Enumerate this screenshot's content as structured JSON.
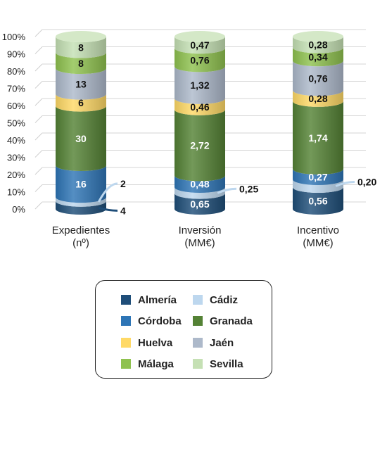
{
  "chart_data": {
    "type": "bar",
    "stacked": true,
    "percent_stacked": true,
    "categories": [
      "Expedientes\n(nº)",
      "Inversión\n(MM€)",
      "Incentivo\n(MM€)"
    ],
    "y_ticks": [
      "0%",
      "10%",
      "20%",
      "30%",
      "40%",
      "50%",
      "60%",
      "70%",
      "80%",
      "90%",
      "100%"
    ],
    "ylim": [
      0,
      100
    ],
    "grid": true,
    "legend_placement": "bottom",
    "series": [
      {
        "name": "Almería",
        "color": "#1f4e79",
        "values": [
          4,
          0.65,
          0.56
        ],
        "labels": [
          "4",
          "0,65",
          "0,56"
        ],
        "label_style": [
          "outside",
          "inside",
          "inside"
        ]
      },
      {
        "name": "Cádiz",
        "color": "#bdd7ee",
        "values": [
          2,
          0.25,
          0.2
        ],
        "labels": [
          "2",
          "0,25",
          "0,20"
        ],
        "label_style": [
          "outside",
          "outside",
          "outside"
        ]
      },
      {
        "name": "Córdoba",
        "color": "#2e75b6",
        "values": [
          16,
          0.48,
          0.27
        ],
        "labels": [
          "16",
          "0,48",
          "0,27"
        ],
        "label_style": [
          "inside",
          "inside",
          "inside"
        ]
      },
      {
        "name": "Granada",
        "color": "#548235",
        "values": [
          30,
          2.72,
          1.74
        ],
        "labels": [
          "30",
          "2,72",
          "1,74"
        ],
        "label_style": [
          "inside",
          "inside",
          "inside"
        ]
      },
      {
        "name": "Huelva",
        "color": "#ffd966",
        "values": [
          6,
          0.46,
          0.28
        ],
        "labels": [
          "6",
          "0,46",
          "0,28"
        ],
        "label_style": [
          "inside",
          "inside",
          "inside"
        ]
      },
      {
        "name": "Jaén",
        "color": "#adb9ca",
        "values": [
          13,
          1.32,
          0.76
        ],
        "labels": [
          "13",
          "1,32",
          "0,76"
        ],
        "label_style": [
          "inside",
          "inside",
          "inside"
        ]
      },
      {
        "name": "Málaga",
        "color": "#8fc24f",
        "values": [
          8,
          0.76,
          0.34
        ],
        "labels": [
          "8",
          "0,76",
          "0,34"
        ],
        "label_style": [
          "inside",
          "inside",
          "inside"
        ]
      },
      {
        "name": "Sevilla",
        "color": "#c5e0b4",
        "values": [
          8,
          0.47,
          0.28
        ],
        "labels": [
          "8",
          "0,47",
          "0,28"
        ],
        "label_style": [
          "inside",
          "inside",
          "inside"
        ]
      }
    ]
  },
  "legend": {
    "items": [
      {
        "label": "Almería",
        "color": "#1f4e79"
      },
      {
        "label": "Cádiz",
        "color": "#bdd7ee"
      },
      {
        "label": "Córdoba",
        "color": "#2e75b6"
      },
      {
        "label": "Granada",
        "color": "#548235"
      },
      {
        "label": "Huelva",
        "color": "#ffd966"
      },
      {
        "label": "Jaén",
        "color": "#adb9ca"
      },
      {
        "label": "Málaga",
        "color": "#8fc24f"
      },
      {
        "label": "Sevilla",
        "color": "#c5e0b4"
      }
    ]
  }
}
